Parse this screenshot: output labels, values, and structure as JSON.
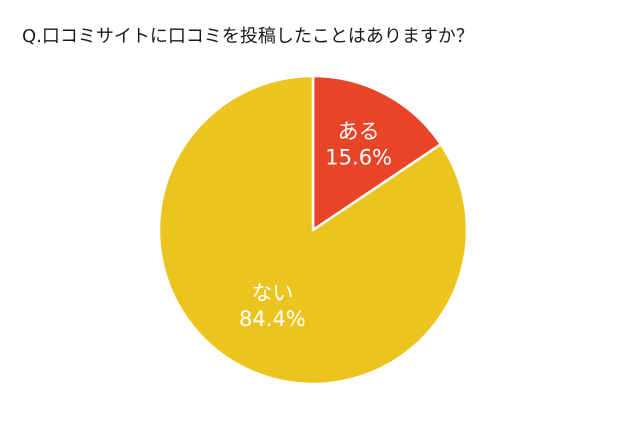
{
  "chart_data": {
    "type": "pie",
    "title": "Q.口コミサイトに口コミを投稿したことはありますか？",
    "slices": [
      {
        "label": "ある",
        "value": 15.6,
        "value_text": "15.6%",
        "color": "#e84427"
      },
      {
        "label": "ない",
        "value": 84.4,
        "value_text": "84.4%",
        "color": "#ecc41f"
      }
    ],
    "start_angle": "12 o'clock",
    "direction": "clockwise",
    "separator_color": "#ffffff"
  }
}
